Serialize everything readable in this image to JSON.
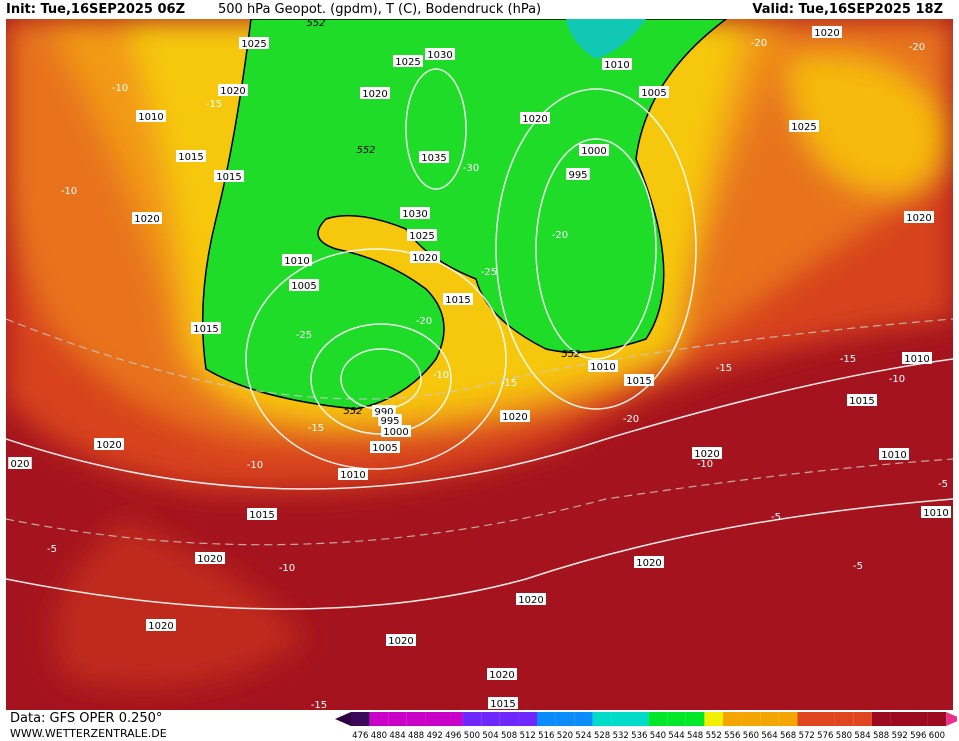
{
  "header": {
    "init": "Init: Tue,16SEP2025 06Z",
    "title": "500 hPa Geopot. (gpdm), T (C), Bodendruck (hPa)",
    "valid": "Valid: Tue,16SEP2025 18Z"
  },
  "footer": {
    "data": "Data: GFS OPER 0.250°",
    "site": "WWW.WETTERZENTRALE.DE"
  },
  "colorbar": {
    "labels": [
      "476",
      "480",
      "484",
      "488",
      "492",
      "496",
      "500",
      "504",
      "508",
      "512",
      "516",
      "520",
      "524",
      "528",
      "532",
      "536",
      "540",
      "544",
      "548",
      "552",
      "556",
      "560",
      "564",
      "568",
      "572",
      "576",
      "580",
      "584",
      "588",
      "592",
      "596",
      "600"
    ]
  },
  "map": {
    "pressure_labels": [
      "1025",
      "1025",
      "1030",
      "1020",
      "1020",
      "1010",
      "1015",
      "1015",
      "1020",
      "1035",
      "1030",
      "1025",
      "1020",
      "1010",
      "1005",
      "1015",
      "1015",
      "990",
      "995",
      "1000",
      "1005",
      "1010",
      "1015",
      "1020",
      "1020",
      "1020",
      "1020",
      "1020",
      "1020",
      "1015",
      "1020",
      "1020",
      "1010",
      "1015",
      "1020",
      "1000",
      "995",
      "1020",
      "1010",
      "1005",
      "1020",
      "1025",
      "1020",
      "1010",
      "1015",
      "1010",
      "1010",
      "020"
    ],
    "temperature_labels": [
      "-20",
      "-20",
      "-10",
      "-15",
      "-10",
      "-30",
      "-20",
      "-25",
      "-25",
      "-20",
      "-10",
      "-15",
      "-15",
      "-20",
      "-10",
      "-10",
      "-15",
      "-15",
      "-10",
      "-5",
      "-10",
      "-5",
      "-5",
      "-5",
      "-15"
    ],
    "geopotential_labels": [
      "552",
      "552",
      "552",
      "552"
    ]
  }
}
